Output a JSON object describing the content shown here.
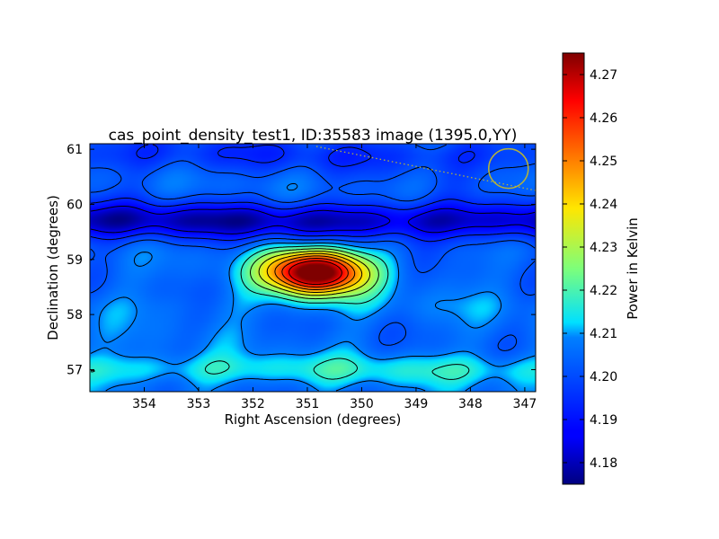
{
  "chart_data": {
    "type": "heatmap",
    "title": "cas_point_density_test1, ID:35583 image (1395.0,YY)",
    "xlabel": "Right Ascension (degrees)",
    "ylabel": "Declination (degrees)",
    "xlim": [
      355.0,
      346.8
    ],
    "ylim": [
      56.6,
      61.1
    ],
    "xticks": [
      354,
      353,
      352,
      351,
      350,
      349,
      348,
      347
    ],
    "yticks": [
      57,
      58,
      59,
      60,
      61
    ],
    "colorbar": {
      "label": "Power in Kelvin",
      "range": [
        4.175,
        4.275
      ],
      "ticks": [
        "4.18",
        "4.19",
        "4.20",
        "4.21",
        "4.22",
        "4.23",
        "4.24",
        "4.25",
        "4.26",
        "4.27"
      ],
      "colormap": "jet"
    },
    "background_level": 4.205,
    "features": [
      {
        "kind": "peak",
        "ra": 350.85,
        "dec": 58.77,
        "value": 4.275
      },
      {
        "kind": "low_band",
        "dec": 59.7,
        "value": 4.18
      },
      {
        "kind": "low_band",
        "dec": 60.9,
        "value": 4.195
      },
      {
        "kind": "high_band",
        "dec": 57.0,
        "value": 4.215
      },
      {
        "kind": "high_band",
        "dec": 58.15,
        "value": 4.207
      }
    ],
    "grid": false,
    "overlays": {
      "beam_circle": {
        "ra": 347.3,
        "dec": 60.65,
        "color": "#b5b23a"
      },
      "dotted_line_color": "#b5b23a"
    }
  }
}
